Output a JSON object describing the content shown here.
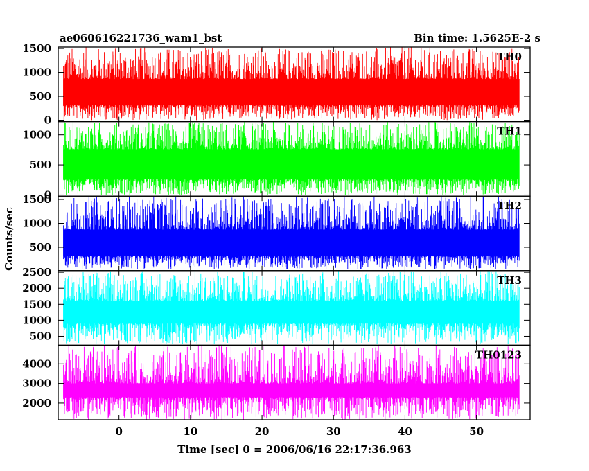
{
  "header": {
    "title": "ae060616221736_wam1_bst",
    "bin_time": "Bin time: 1.5625E-2 s"
  },
  "chart_data": {
    "type": "line",
    "xlabel": "Time [sec] 0 = 2006/06/16 22:17:36.963",
    "ylabel": "Counts/sec",
    "xlim": [
      -8.5,
      57.5
    ],
    "x_data_range": [
      -7.8,
      56.0
    ],
    "x_ticks": [
      {
        "value": 0,
        "label": "0"
      },
      {
        "value": 10,
        "label": "10"
      },
      {
        "value": 20,
        "label": "20"
      },
      {
        "value": 30,
        "label": "30"
      },
      {
        "value": 40,
        "label": "40"
      },
      {
        "value": 50,
        "label": "50"
      }
    ],
    "panels": [
      {
        "name": "TH0",
        "color": "#ff0000",
        "ylim": [
          -30,
          1530
        ],
        "band": [
          320,
          860
        ],
        "peak": [
          1300,
          1530
        ],
        "dip": [
          0,
          260
        ],
        "yticks": [
          {
            "value": 0,
            "label": "0"
          },
          {
            "value": 500,
            "label": "500"
          },
          {
            "value": 1000,
            "label": "1000"
          },
          {
            "value": 1500,
            "label": "1500"
          }
        ]
      },
      {
        "name": "TH1",
        "color": "#00ff00",
        "ylim": [
          -20,
          1220
        ],
        "band": [
          260,
          760
        ],
        "peak": [
          1050,
          1220
        ],
        "dip": [
          0,
          200
        ],
        "yticks": [
          {
            "value": 0,
            "label": "0"
          },
          {
            "value": 500,
            "label": "500"
          },
          {
            "value": 1000,
            "label": "1000"
          }
        ]
      },
      {
        "name": "TH2",
        "color": "#0000ff",
        "ylim": [
          10,
          1570
        ],
        "band": [
          320,
          870
        ],
        "peak": [
          1300,
          1570
        ],
        "dip": [
          40,
          300
        ],
        "yticks": [
          {
            "value": 500,
            "label": "500"
          },
          {
            "value": 1000,
            "label": "1000"
          },
          {
            "value": 1500,
            "label": "1500"
          }
        ]
      },
      {
        "name": "TH3",
        "color": "#00ffff",
        "ylim": [
          220,
          2550
        ],
        "band": [
          900,
          1600
        ],
        "peak": [
          2100,
          2550
        ],
        "dip": [
          250,
          600
        ],
        "yticks": [
          {
            "value": 500,
            "label": "500"
          },
          {
            "value": 1000,
            "label": "1000"
          },
          {
            "value": 1500,
            "label": "1500"
          },
          {
            "value": 2000,
            "label": "2000"
          },
          {
            "value": 2500,
            "label": "2500"
          }
        ]
      },
      {
        "name": "TH0123",
        "color": "#ff00ff",
        "ylim": [
          1150,
          4950
        ],
        "band": [
          2300,
          3000
        ],
        "peak": [
          4000,
          4950
        ],
        "dip": [
          1150,
          1800
        ],
        "yticks": [
          {
            "value": 2000,
            "label": "2000"
          },
          {
            "value": 3000,
            "label": "3000"
          },
          {
            "value": 4000,
            "label": "4000"
          }
        ]
      }
    ]
  }
}
